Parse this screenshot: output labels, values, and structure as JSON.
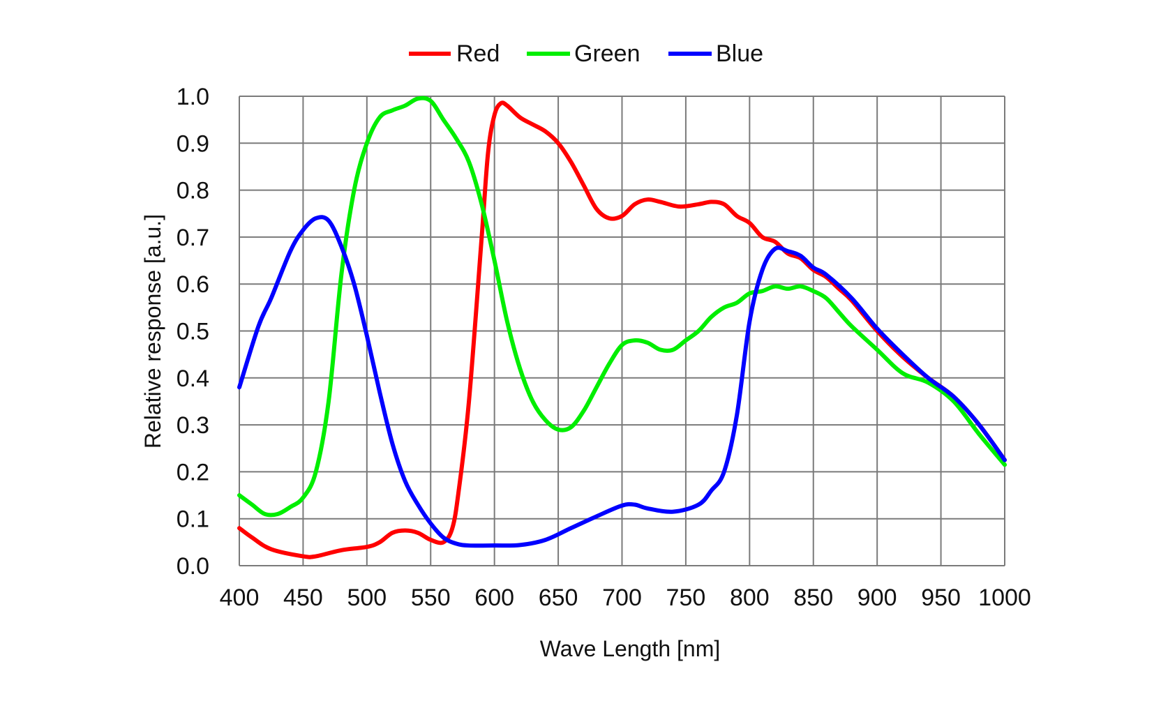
{
  "chart_data": {
    "type": "line",
    "title": "",
    "xlabel": "Wave Length [nm]",
    "ylabel": "Relative response [a.u.]",
    "xlim": [
      400,
      1000
    ],
    "ylim": [
      0,
      1.0
    ],
    "xticks": [
      "400",
      "450",
      "500",
      "550",
      "600",
      "650",
      "700",
      "750",
      "800",
      "850",
      "900",
      "950",
      "1000"
    ],
    "yticks": [
      "0.0",
      "0.1",
      "0.2",
      "0.3",
      "0.4",
      "0.5",
      "0.6",
      "0.7",
      "0.8",
      "0.9",
      "1.0"
    ],
    "grid": true,
    "legend_position": "top-center",
    "series": [
      {
        "name": "Red",
        "color": "#ff0000",
        "x": [
          400,
          410,
          425,
          450,
          460,
          480,
          500,
          510,
          520,
          530,
          540,
          550,
          560,
          567,
          572,
          580,
          590,
          595,
          600,
          605,
          610,
          620,
          630,
          640,
          650,
          660,
          670,
          680,
          690,
          700,
          710,
          720,
          730,
          745,
          760,
          770,
          780,
          790,
          800,
          810,
          820,
          830,
          840,
          850,
          860,
          870,
          880,
          900,
          920,
          940,
          960,
          980,
          1000
        ],
        "y": [
          0.08,
          0.06,
          0.035,
          0.02,
          0.02,
          0.033,
          0.04,
          0.05,
          0.07,
          0.075,
          0.07,
          0.055,
          0.05,
          0.08,
          0.16,
          0.35,
          0.7,
          0.88,
          0.96,
          0.985,
          0.98,
          0.955,
          0.94,
          0.925,
          0.9,
          0.86,
          0.81,
          0.76,
          0.74,
          0.745,
          0.77,
          0.78,
          0.775,
          0.765,
          0.77,
          0.775,
          0.77,
          0.745,
          0.73,
          0.7,
          0.69,
          0.665,
          0.655,
          0.63,
          0.615,
          0.59,
          0.565,
          0.5,
          0.445,
          0.4,
          0.36,
          0.3,
          0.225
        ]
      },
      {
        "name": "Green",
        "color": "#00ee00",
        "x": [
          400,
          410,
          420,
          430,
          440,
          450,
          460,
          470,
          480,
          490,
          500,
          510,
          520,
          530,
          540,
          550,
          560,
          570,
          580,
          590,
          600,
          610,
          620,
          630,
          640,
          650,
          660,
          670,
          680,
          690,
          700,
          710,
          720,
          730,
          740,
          750,
          760,
          770,
          780,
          790,
          800,
          810,
          820,
          830,
          840,
          850,
          860,
          870,
          880,
          900,
          920,
          940,
          960,
          980,
          1000
        ],
        "y": [
          0.15,
          0.13,
          0.11,
          0.11,
          0.125,
          0.145,
          0.2,
          0.35,
          0.62,
          0.8,
          0.9,
          0.955,
          0.97,
          0.98,
          0.995,
          0.99,
          0.95,
          0.91,
          0.86,
          0.77,
          0.65,
          0.52,
          0.42,
          0.35,
          0.31,
          0.29,
          0.295,
          0.33,
          0.38,
          0.43,
          0.47,
          0.48,
          0.475,
          0.46,
          0.46,
          0.48,
          0.5,
          0.53,
          0.55,
          0.56,
          0.58,
          0.585,
          0.595,
          0.59,
          0.595,
          0.585,
          0.57,
          0.54,
          0.51,
          0.46,
          0.41,
          0.39,
          0.35,
          0.28,
          0.215
        ]
      },
      {
        "name": "Blue",
        "color": "#0000ff",
        "x": [
          400,
          415,
          425,
          440,
          450,
          460,
          470,
          480,
          490,
          500,
          510,
          520,
          530,
          540,
          550,
          560,
          570,
          580,
          600,
          620,
          640,
          660,
          680,
          700,
          710,
          720,
          740,
          760,
          770,
          780,
          790,
          800,
          810,
          820,
          830,
          840,
          850,
          860,
          880,
          900,
          920,
          940,
          960,
          980,
          1000
        ],
        "y": [
          0.38,
          0.51,
          0.57,
          0.67,
          0.715,
          0.74,
          0.735,
          0.68,
          0.6,
          0.49,
          0.37,
          0.26,
          0.18,
          0.13,
          0.09,
          0.06,
          0.047,
          0.043,
          0.043,
          0.044,
          0.055,
          0.08,
          0.105,
          0.128,
          0.13,
          0.122,
          0.115,
          0.13,
          0.16,
          0.2,
          0.32,
          0.52,
          0.63,
          0.675,
          0.67,
          0.66,
          0.635,
          0.62,
          0.57,
          0.505,
          0.45,
          0.4,
          0.36,
          0.3,
          0.225
        ]
      }
    ]
  }
}
